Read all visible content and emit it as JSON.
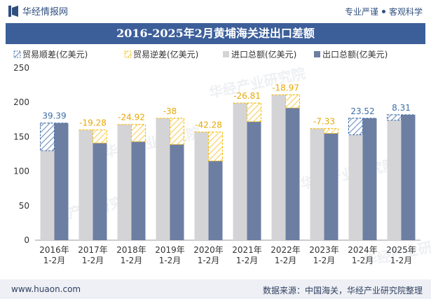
{
  "header": {
    "brand": "华经情报网",
    "tagline_left": "专业严谨",
    "tagline_right": "客观科学"
  },
  "footer": {
    "url": "www.huaon.com",
    "source": "数据来源：中国海关，华经产业研究院整理"
  },
  "watermark": "华经产业研究院",
  "colors": {
    "import": "#d4d4d6",
    "export": "#6d7ea3",
    "surplus": "#3c6ea8",
    "deficit": "#f5b800",
    "title_band": "#3c5f9a"
  },
  "chart_data": {
    "type": "bar",
    "title": "2016-2025年2月黄埔海关进出口差额",
    "categories": [
      "2016年\n1-2月",
      "2017年\n1-2月",
      "2018年\n1-2月",
      "2019年\n1-2月",
      "2020年\n1-2月",
      "2021年\n1-2月",
      "2022年\n1-2月",
      "2023年\n1-2月",
      "2024年\n1-2月",
      "2025年\n1-2月"
    ],
    "ylim": [
      0,
      250
    ],
    "yticks": [
      0,
      50,
      100,
      150,
      200,
      250
    ],
    "grid": false,
    "legend_position": "top",
    "legend": [
      "贸易顺差(亿美元)",
      "贸易逆差(亿美元)",
      "进口总额(亿美元)",
      "出口总额(亿美元)"
    ],
    "series": [
      {
        "name": "进口总额(亿美元)",
        "values": [
          130,
          160,
          168,
          177,
          157,
          199,
          211,
          162,
          153,
          174
        ]
      },
      {
        "name": "出口总额(亿美元)",
        "values": [
          170,
          141,
          143,
          139,
          115,
          172,
          192,
          155,
          177,
          182
        ]
      }
    ],
    "balance_labels": [
      "39.39",
      "-19.28",
      "-24.92",
      "-38",
      "-42.28",
      "-26.81",
      "-18.97",
      "-7.33",
      "23.52",
      "8.31"
    ]
  }
}
